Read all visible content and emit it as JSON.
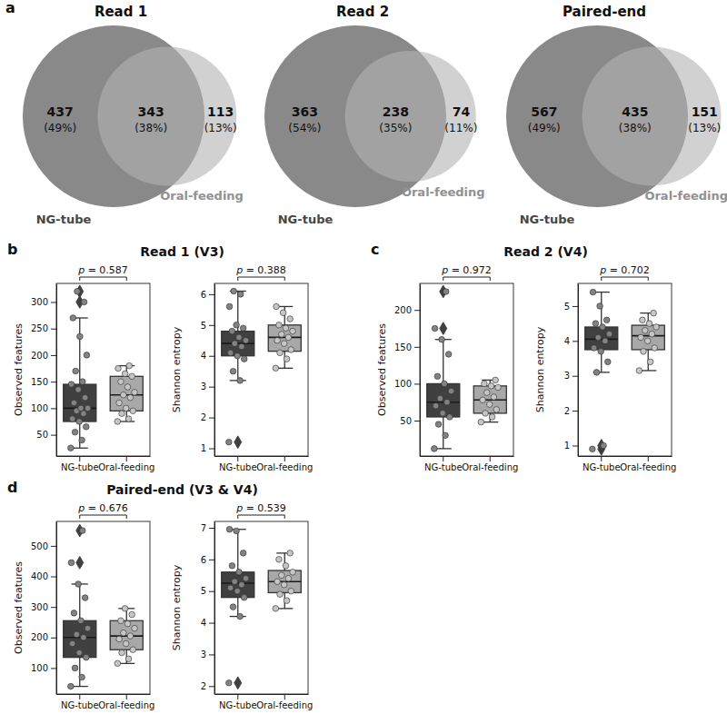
{
  "chart_data": [
    {
      "type": "venn",
      "panel": "a",
      "charts": [
        {
          "title": "Read 1",
          "sets": [
            "NG-tube",
            "Oral-feeding"
          ],
          "colors": [
            "#6b6b6b",
            "#b3b3b3"
          ],
          "values": [
            437,
            343,
            113
          ],
          "percentage_labels": [
            "(49%)",
            "(38%)",
            "(13%)"
          ]
        },
        {
          "title": "Read 2",
          "sets": [
            "NG-tube",
            "Oral-feeding"
          ],
          "colors": [
            "#6b6b6b",
            "#b3b3b3"
          ],
          "values": [
            363,
            238,
            74
          ],
          "percentage_labels": [
            "(54%)",
            "(35%)",
            "(11%)"
          ]
        },
        {
          "title": "Paired-end",
          "sets": [
            "NG-tube",
            "Oral-feeding"
          ],
          "colors": [
            "#6b6b6b",
            "#b3b3b3"
          ],
          "values": [
            567,
            435,
            151
          ],
          "percentage_labels": [
            "(49%)",
            "(38%)",
            "(13%)"
          ]
        }
      ]
    },
    {
      "type": "box",
      "panel": "b",
      "title": "Read 1 (V3)",
      "charts": [
        {
          "ylabel": "Observed features",
          "annotation": "p = 0.587",
          "categories": [
            "NG-tube",
            "Oral-feeding"
          ],
          "colors": [
            "#404040",
            "#a8a8a8"
          ],
          "ylim": [
            10,
            335
          ],
          "yticks": [
            50,
            100,
            150,
            200,
            250,
            300
          ],
          "boxes": [
            {
              "whisker_low": 25,
              "q1": 75,
              "median": 100,
              "q3": 145,
              "whisker_high": 270,
              "outliers": [
                300,
                320
              ],
              "points": [
                25,
                40,
                55,
                65,
                75,
                80,
                90,
                95,
                100,
                100,
                110,
                120,
                135,
                145,
                150,
                170,
                200,
                235,
                270,
                300,
                320
              ]
            },
            {
              "whisker_low": 75,
              "q1": 95,
              "median": 125,
              "q3": 160,
              "whisker_high": 180,
              "outliers": [],
              "points": [
                75,
                80,
                90,
                95,
                100,
                110,
                120,
                125,
                130,
                140,
                150,
                160,
                165,
                175,
                180
              ]
            }
          ]
        },
        {
          "ylabel": "Shannon entropy",
          "annotation": "p = 0.388",
          "categories": [
            "NG-tube",
            "Oral-feeding"
          ],
          "colors": [
            "#404040",
            "#a8a8a8"
          ],
          "ylim": [
            0.75,
            6.35
          ],
          "yticks": [
            1,
            2,
            3,
            4,
            5,
            6
          ],
          "boxes": [
            {
              "whisker_low": 3.2,
              "q1": 4.0,
              "median": 4.4,
              "q3": 4.8,
              "whisker_high": 6.1,
              "outliers": [
                1.2
              ],
              "points": [
                1.2,
                3.2,
                3.5,
                3.9,
                4.0,
                4.1,
                4.3,
                4.4,
                4.5,
                4.6,
                4.8,
                4.9,
                5.0,
                5.6,
                6.0,
                6.1
              ]
            },
            {
              "whisker_low": 3.6,
              "q1": 4.15,
              "median": 4.6,
              "q3": 5.0,
              "whisker_high": 5.6,
              "outliers": [],
              "points": [
                3.6,
                3.9,
                4.1,
                4.2,
                4.4,
                4.5,
                4.6,
                4.7,
                4.8,
                4.9,
                5.0,
                5.2,
                5.4,
                5.6
              ]
            }
          ]
        }
      ]
    },
    {
      "type": "box",
      "panel": "c",
      "title": "Read 2 (V4)",
      "charts": [
        {
          "ylabel": "Observed features",
          "annotation": "p = 0.972",
          "categories": [
            "NG-tube",
            "Oral-feeding"
          ],
          "colors": [
            "#404040",
            "#a8a8a8"
          ],
          "ylim": [
            2,
            236
          ],
          "yticks": [
            50,
            100,
            150,
            200
          ],
          "boxes": [
            {
              "whisker_low": 12,
              "q1": 55,
              "median": 75,
              "q3": 100,
              "whisker_high": 160,
              "outliers": [
                175,
                225
              ],
              "points": [
                12,
                30,
                45,
                55,
                60,
                70,
                75,
                80,
                90,
                100,
                110,
                140,
                160,
                175,
                225
              ]
            },
            {
              "whisker_low": 48,
              "q1": 60,
              "median": 78,
              "q3": 97,
              "whisker_high": 105,
              "outliers": [],
              "points": [
                48,
                55,
                60,
                65,
                72,
                78,
                82,
                88,
                95,
                97,
                100,
                105
              ]
            }
          ]
        },
        {
          "ylabel": "Shannon entropy",
          "annotation": "p = 0.702",
          "categories": [
            "NG-tube",
            "Oral-feeding"
          ],
          "colors": [
            "#404040",
            "#a8a8a8"
          ],
          "ylim": [
            0.7,
            5.65
          ],
          "yticks": [
            1,
            2,
            3,
            4,
            5
          ],
          "boxes": [
            {
              "whisker_low": 3.1,
              "q1": 3.75,
              "median": 4.05,
              "q3": 4.4,
              "whisker_high": 5.4,
              "outliers": [
                0.9,
                1.0
              ],
              "points": [
                0.9,
                1.0,
                3.1,
                3.4,
                3.7,
                3.8,
                4.0,
                4.1,
                4.2,
                4.4,
                4.5,
                4.6,
                5.0,
                5.4
              ]
            },
            {
              "whisker_low": 3.15,
              "q1": 3.75,
              "median": 4.15,
              "q3": 4.45,
              "whisker_high": 4.8,
              "outliers": [],
              "points": [
                3.15,
                3.4,
                3.7,
                3.8,
                4.0,
                4.1,
                4.2,
                4.3,
                4.4,
                4.5,
                4.6,
                4.8
              ]
            }
          ]
        }
      ]
    },
    {
      "type": "box",
      "panel": "d",
      "title": "Paired-end (V3 & V4)",
      "charts": [
        {
          "ylabel": "Observed features",
          "annotation": "p = 0.676",
          "categories": [
            "NG-tube",
            "Oral-feeding"
          ],
          "colors": [
            "#404040",
            "#a8a8a8"
          ],
          "ylim": [
            15,
            580
          ],
          "yticks": [
            100,
            200,
            300,
            400,
            500
          ],
          "boxes": [
            {
              "whisker_low": 40,
              "q1": 135,
              "median": 200,
              "q3": 255,
              "whisker_high": 375,
              "outliers": [
                445,
                550
              ],
              "points": [
                40,
                70,
                100,
                135,
                150,
                180,
                200,
                210,
                230,
                255,
                280,
                330,
                375,
                445,
                550
              ]
            },
            {
              "whisker_low": 115,
              "q1": 160,
              "median": 205,
              "q3": 255,
              "whisker_high": 295,
              "outliers": [],
              "points": [
                115,
                130,
                150,
                160,
                180,
                195,
                205,
                215,
                230,
                245,
                255,
                275,
                295
              ]
            }
          ]
        },
        {
          "ylabel": "Shannon entropy",
          "annotation": "p = 0.539",
          "categories": [
            "NG-tube",
            "Oral-feeding"
          ],
          "colors": [
            "#404040",
            "#a8a8a8"
          ],
          "ylim": [
            1.75,
            7.2
          ],
          "yticks": [
            2,
            3,
            4,
            5,
            6,
            7
          ],
          "boxes": [
            {
              "whisker_low": 4.2,
              "q1": 4.8,
              "median": 5.25,
              "q3": 5.6,
              "whisker_high": 6.95,
              "outliers": [
                2.1
              ],
              "points": [
                2.1,
                4.2,
                4.5,
                4.8,
                5.0,
                5.1,
                5.2,
                5.3,
                5.4,
                5.6,
                5.8,
                6.2,
                6.9,
                6.95
              ]
            },
            {
              "whisker_low": 4.45,
              "q1": 4.95,
              "median": 5.3,
              "q3": 5.65,
              "whisker_high": 6.2,
              "outliers": [],
              "points": [
                4.45,
                4.7,
                4.9,
                5.0,
                5.2,
                5.3,
                5.4,
                5.5,
                5.6,
                5.8,
                6.0,
                6.2
              ]
            }
          ]
        }
      ]
    }
  ]
}
